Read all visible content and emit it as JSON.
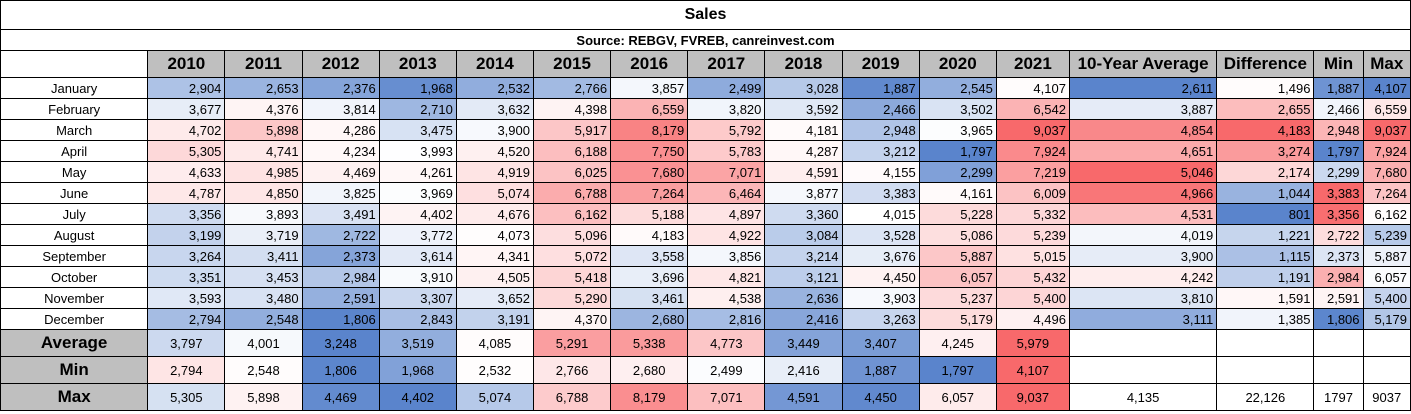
{
  "title": "Sales",
  "source": "Source: REBGV, FVREB, canreinvest.com",
  "headers": [
    "2010",
    "2011",
    "2012",
    "2013",
    "2014",
    "2015",
    "2016",
    "2017",
    "2018",
    "2019",
    "2020",
    "2021",
    "10-Year Average",
    "Difference",
    "Min",
    "Max"
  ],
  "months": [
    {
      "label": "January",
      "values": [
        "2,904",
        "2,653",
        "2,376",
        "1,968",
        "2,532",
        "2,766",
        "3,857",
        "2,499",
        "3,028",
        "1,887",
        "2,545",
        "4,107"
      ],
      "avg": "2,611",
      "diff": "1,496",
      "min": "1,887",
      "max": "4,107"
    },
    {
      "label": "February",
      "values": [
        "3,677",
        "4,376",
        "3,814",
        "2,710",
        "3,632",
        "4,398",
        "6,559",
        "3,820",
        "3,592",
        "2,466",
        "3,502",
        "6,542"
      ],
      "avg": "3,887",
      "diff": "2,655",
      "min": "2,466",
      "max": "6,559"
    },
    {
      "label": "March",
      "values": [
        "4,702",
        "5,898",
        "4,286",
        "3,475",
        "3,900",
        "5,917",
        "8,179",
        "5,792",
        "4,181",
        "2,948",
        "3,965",
        "9,037"
      ],
      "avg": "4,854",
      "diff": "4,183",
      "min": "2,948",
      "max": "9,037"
    },
    {
      "label": "April",
      "values": [
        "5,305",
        "4,741",
        "4,234",
        "3,993",
        "4,520",
        "6,188",
        "7,750",
        "5,783",
        "4,287",
        "3,212",
        "1,797",
        "7,924"
      ],
      "avg": "4,651",
      "diff": "3,274",
      "min": "1,797",
      "max": "7,924"
    },
    {
      "label": "May",
      "values": [
        "4,633",
        "4,985",
        "4,469",
        "4,261",
        "4,919",
        "6,025",
        "7,680",
        "7,071",
        "4,591",
        "4,155",
        "2,299",
        "7,219"
      ],
      "avg": "5,046",
      "diff": "2,174",
      "min": "2,299",
      "max": "7,680"
    },
    {
      "label": "June",
      "values": [
        "4,787",
        "4,850",
        "3,825",
        "3,969",
        "5,074",
        "6,788",
        "7,264",
        "6,464",
        "3,877",
        "3,383",
        "4,161",
        "6,009"
      ],
      "avg": "4,966",
      "diff": "1,044",
      "min": "3,383",
      "max": "7,264"
    },
    {
      "label": "July",
      "values": [
        "3,356",
        "3,893",
        "3,491",
        "4,402",
        "4,676",
        "6,162",
        "5,188",
        "4,897",
        "3,360",
        "4,015",
        "5,228",
        "5,332"
      ],
      "avg": "4,531",
      "diff": "801",
      "min": "3,356",
      "max": "6,162"
    },
    {
      "label": "August",
      "values": [
        "3,199",
        "3,719",
        "2,722",
        "3,772",
        "4,073",
        "5,096",
        "4,183",
        "4,922",
        "3,084",
        "3,528",
        "5,086",
        "5,239"
      ],
      "avg": "4,019",
      "diff": "1,221",
      "min": "2,722",
      "max": "5,239"
    },
    {
      "label": "September",
      "values": [
        "3,264",
        "3,411",
        "2,373",
        "3,614",
        "4,341",
        "5,072",
        "3,558",
        "3,856",
        "3,214",
        "3,676",
        "5,887",
        "5,015"
      ],
      "avg": "3,900",
      "diff": "1,115",
      "min": "2,373",
      "max": "5,887"
    },
    {
      "label": "October",
      "values": [
        "3,351",
        "3,453",
        "2,984",
        "3,910",
        "4,505",
        "5,418",
        "3,696",
        "4,821",
        "3,121",
        "4,450",
        "6,057",
        "5,432"
      ],
      "avg": "4,242",
      "diff": "1,191",
      "min": "2,984",
      "max": "6,057"
    },
    {
      "label": "November",
      "values": [
        "3,593",
        "3,480",
        "2,591",
        "3,307",
        "3,652",
        "5,290",
        "3,461",
        "4,538",
        "2,636",
        "3,903",
        "5,237",
        "5,400"
      ],
      "avg": "3,810",
      "diff": "1,591",
      "min": "2,591",
      "max": "5,400"
    },
    {
      "label": "December",
      "values": [
        "2,794",
        "2,548",
        "1,806",
        "2,843",
        "3,191",
        "4,370",
        "2,680",
        "2,816",
        "2,416",
        "3,263",
        "5,179",
        "4,496"
      ],
      "avg": "3,111",
      "diff": "1,385",
      "min": "1,806",
      "max": "5,179"
    }
  ],
  "summary": [
    {
      "label": "Average",
      "values": [
        "3,797",
        "4,001",
        "3,248",
        "3,519",
        "4,085",
        "5,291",
        "5,338",
        "4,773",
        "3,449",
        "3,407",
        "4,245",
        "5,979"
      ],
      "extra": [
        "",
        "",
        "",
        ""
      ]
    },
    {
      "label": "Min",
      "values": [
        "2,794",
        "2,548",
        "1,806",
        "1,968",
        "2,532",
        "2,766",
        "2,680",
        "2,499",
        "2,416",
        "1,887",
        "1,797",
        "4,107"
      ],
      "extra": [
        "",
        "",
        "",
        ""
      ]
    },
    {
      "label": "Max",
      "values": [
        "5,305",
        "5,898",
        "4,469",
        "4,402",
        "5,074",
        "6,788",
        "8,179",
        "7,071",
        "4,591",
        "4,450",
        "6,057",
        "9,037"
      ],
      "extra": [
        "4,135",
        "22,126",
        "1797",
        "9037"
      ]
    }
  ],
  "colors": {
    "low": "#5a84cc",
    "mid": "#ffffff",
    "high": "#f8696b",
    "header_bg": "#bfbfbf"
  }
}
